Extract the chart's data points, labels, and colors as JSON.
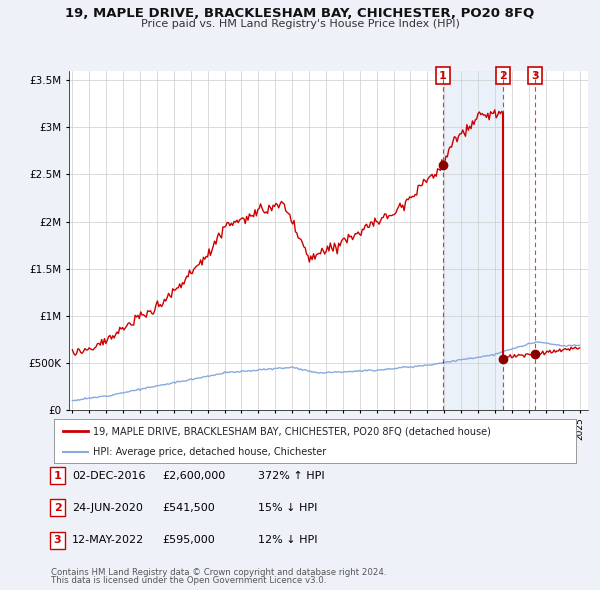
{
  "title": "19, MAPLE DRIVE, BRACKLESHAM BAY, CHICHESTER, PO20 8FQ",
  "subtitle": "Price paid vs. HM Land Registry's House Price Index (HPI)",
  "bg_color": "#eef2f8",
  "plot_bg_color": "#ffffff",
  "red_color": "#cc0000",
  "blue_color": "#88aadd",
  "ylim": [
    0,
    3600000
  ],
  "xlim": [
    1994.8,
    2025.5
  ],
  "yticks": [
    0,
    500000,
    1000000,
    1500000,
    2000000,
    2500000,
    3000000,
    3500000
  ],
  "ytick_labels": [
    "£0",
    "£500K",
    "£1M",
    "£1.5M",
    "£2M",
    "£2.5M",
    "£3M",
    "£3.5M"
  ],
  "xticks": [
    1995,
    1996,
    1997,
    1998,
    1999,
    2000,
    2001,
    2002,
    2003,
    2004,
    2005,
    2006,
    2007,
    2008,
    2009,
    2010,
    2011,
    2012,
    2013,
    2014,
    2015,
    2016,
    2017,
    2018,
    2019,
    2020,
    2021,
    2022,
    2023,
    2024,
    2025
  ],
  "sale1_date": 2016.92,
  "sale1_price": 2600000,
  "sale2_date": 2020.48,
  "sale2_price": 541500,
  "sale3_date": 2022.36,
  "sale3_price": 595000,
  "legend_line1": "19, MAPLE DRIVE, BRACKLESHAM BAY, CHICHESTER, PO20 8FQ (detached house)",
  "legend_line2": "HPI: Average price, detached house, Chichester",
  "footer1": "Contains HM Land Registry data © Crown copyright and database right 2024.",
  "footer2": "This data is licensed under the Open Government Licence v3.0.",
  "table_rows": [
    [
      "1",
      "02-DEC-2016",
      "£2,600,000",
      "372% ↑ HPI"
    ],
    [
      "2",
      "24-JUN-2020",
      "£541,500",
      "15% ↓ HPI"
    ],
    [
      "3",
      "12-MAY-2022",
      "£595,000",
      "12% ↓ HPI"
    ]
  ]
}
